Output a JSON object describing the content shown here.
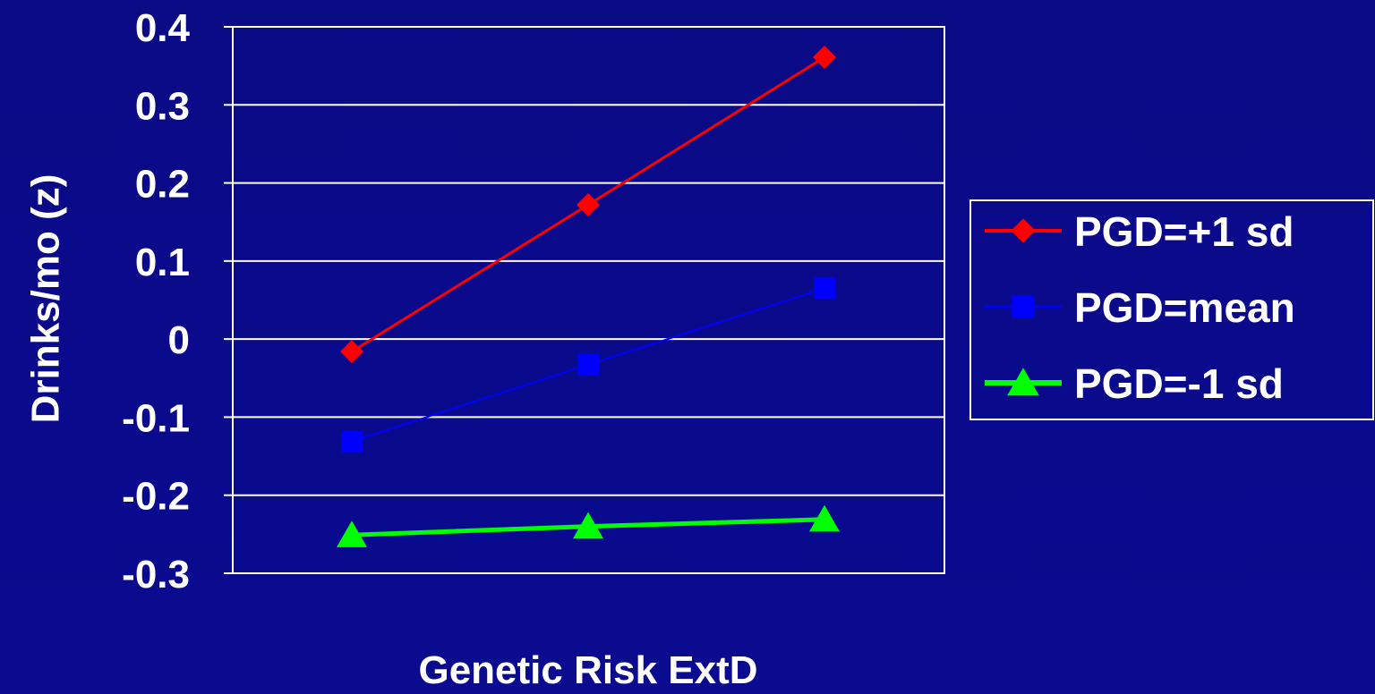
{
  "chart_data": {
    "type": "line",
    "title": "",
    "xlabel": "Genetic Risk ExtD",
    "ylabel": "Drinks/mo (z)",
    "x": [
      1,
      2,
      3
    ],
    "categories": [
      "",
      "",
      ""
    ],
    "ylim": [
      -0.3,
      0.4
    ],
    "yticks": [
      0.4,
      0.3,
      0.2,
      0.1,
      0,
      -0.1,
      -0.2,
      -0.3
    ],
    "ytick_labels": [
      "0.4",
      "0.3",
      "0.2",
      "0.1",
      "0",
      "-0.1",
      "-0.2",
      "-0.3"
    ],
    "grid": true,
    "legend_position": "right",
    "series": [
      {
        "name": "PGD=+1 sd",
        "values": [
          -0.016,
          0.172,
          0.361
        ],
        "color": "#ff0000",
        "marker": "diamond"
      },
      {
        "name": "PGD=mean",
        "values": [
          -0.131,
          -0.033,
          0.065
        ],
        "color": "#0000ff",
        "marker": "square"
      },
      {
        "name": "PGD=-1 sd",
        "values": [
          -0.251,
          -0.24,
          -0.231
        ],
        "color": "#00ff00",
        "marker": "triangle"
      }
    ]
  }
}
